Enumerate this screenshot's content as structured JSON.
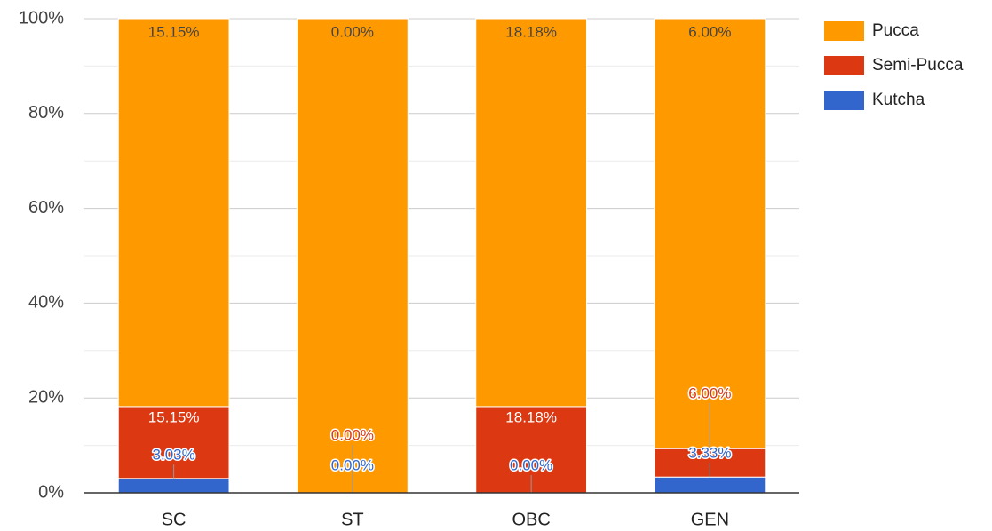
{
  "chart_data": {
    "type": "stacked_bar_percent",
    "categories": [
      "SC",
      "ST",
      "OBC",
      "GEN"
    ],
    "series": [
      {
        "name": "Pucca",
        "color": "#ff9900",
        "values": [
          81.82,
          100,
          81.82,
          90.67
        ]
      },
      {
        "name": "Semi-Pucca",
        "color": "#dc3912",
        "values": [
          15.15,
          0,
          18.18,
          6.0
        ],
        "value_labels": [
          "15.15%",
          "0.00%",
          "18.18%",
          "6.00%"
        ]
      },
      {
        "name": "Kutcha",
        "color": "#3366cc",
        "values": [
          3.03,
          0,
          0,
          3.33
        ],
        "value_labels": [
          "3.03%",
          "0.00%",
          "0.00%",
          "3.33%"
        ]
      }
    ],
    "annotations": [
      "15.15%",
      "0.00%",
      "18.18%",
      "6.00%"
    ],
    "ylim": [
      0,
      100
    ],
    "yticks": [
      {
        "value": 0,
        "label": "0%"
      },
      {
        "value": 20,
        "label": "20%"
      },
      {
        "value": 40,
        "label": "40%"
      },
      {
        "value": 60,
        "label": "60%"
      },
      {
        "value": 80,
        "label": "80%"
      },
      {
        "value": 100,
        "label": "100%"
      }
    ],
    "minor_yticks": [
      10,
      30,
      50,
      70,
      90
    ],
    "grid": true,
    "legend": "right"
  }
}
